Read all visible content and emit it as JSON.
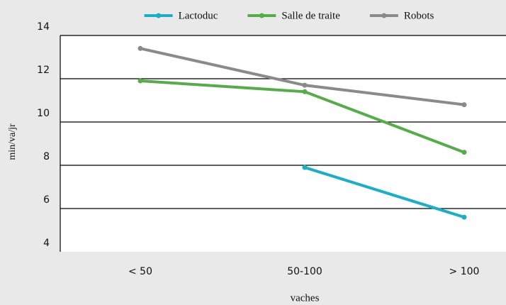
{
  "chart_data": {
    "type": "line",
    "x_label": "vaches",
    "y_label": "min/va/jr",
    "categories": [
      "< 50",
      "50-100",
      "> 100"
    ],
    "series": [
      {
        "name": "Lactoduc",
        "color": "#1aafc9",
        "values": [
          null,
          7.9,
          5.6
        ]
      },
      {
        "name": "Salle de traite",
        "color": "#55ad47",
        "values": [
          11.9,
          11.4,
          8.6
        ]
      },
      {
        "name": "Robots",
        "color": "#8a8a8a",
        "values": [
          13.4,
          11.7,
          10.8
        ]
      }
    ],
    "ylim": [
      4,
      14
    ],
    "yticks": [
      4,
      6,
      8,
      10,
      12,
      14
    ],
    "grid": true,
    "legend": "top"
  }
}
